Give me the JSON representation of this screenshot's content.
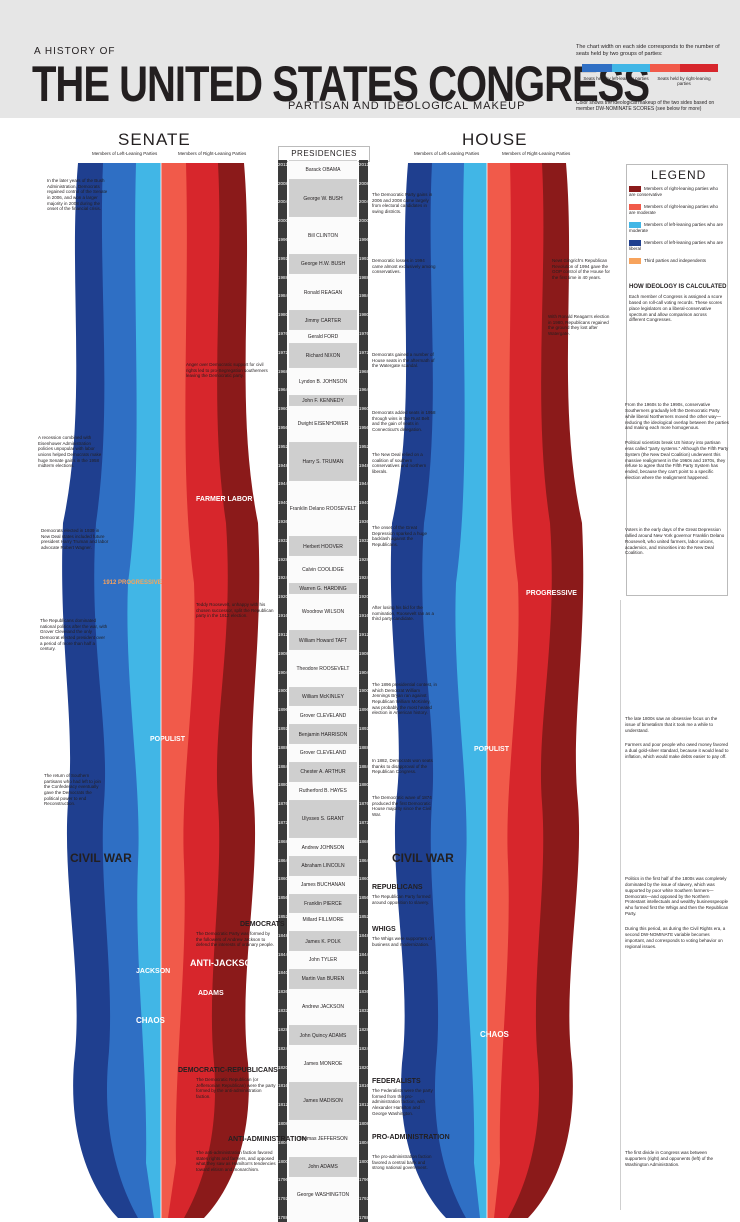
{
  "header": {
    "kicker": "A HISTORY OF",
    "title": "THE UNITED STATES CONGRESS",
    "subtitle": "PARTISAN AND IDEOLOGICAL MAKEUP",
    "key_text": "The chart width on each side corresponds to the number of seats held by two groups of parties:",
    "key_left": "Seats held by left-leaning parties",
    "key_right": "Seats held by right-leaning parties",
    "key_footer": "Color shows the ideological makeup of the two sides based on member DW-NOMINATE SCORES (see below for more)"
  },
  "sections": {
    "senate": "SENATE",
    "house": "HOUSE",
    "presidencies": "PRESIDENCIES",
    "axis_left": "Members of Left-Leaning Parties",
    "axis_right": "Members of Right-Leaning Parties"
  },
  "colors": {
    "dark_blue": "#1f3f8f",
    "mid_blue": "#2f6fc4",
    "light_blue": "#41b6e6",
    "dark_red": "#8b1a1a",
    "red": "#d7262c",
    "light_red": "#f15a4a"
  },
  "presidents": [
    {
      "name": "Barack OBAMA",
      "start": "2009",
      "end": "2013"
    },
    {
      "name": "George W. BUSH",
      "start": "2001",
      "end": "2009"
    },
    {
      "name": "Bill CLINTON",
      "start": "1993",
      "end": "2001"
    },
    {
      "name": "George H.W. BUSH",
      "start": "1989",
      "end": "1993"
    },
    {
      "name": "Ronald REAGAN",
      "start": "1981",
      "end": "1989"
    },
    {
      "name": "Jimmy CARTER",
      "start": "1977",
      "end": "1981"
    },
    {
      "name": "Gerald FORD",
      "start": "1974",
      "end": "1977"
    },
    {
      "name": "Richard NIXON",
      "start": "1969",
      "end": "1974"
    },
    {
      "name": "Lyndon B. JOHNSON",
      "start": "1963",
      "end": "1969"
    },
    {
      "name": "John F. KENNEDY",
      "start": "1961",
      "end": "1963"
    },
    {
      "name": "Dwight EISENHOWER",
      "start": "1953",
      "end": "1961"
    },
    {
      "name": "Harry S. TRUMAN",
      "start": "1945",
      "end": "1953"
    },
    {
      "name": "Franklin Delano ROOSEVELT",
      "start": "1933",
      "end": "1945"
    },
    {
      "name": "Herbert HOOVER",
      "start": "1929",
      "end": "1933"
    },
    {
      "name": "Calvin COOLIDGE",
      "start": "1923",
      "end": "1929"
    },
    {
      "name": "Warren G. HARDING",
      "start": "1921",
      "end": "1923"
    },
    {
      "name": "Woodrow WILSON",
      "start": "1913",
      "end": "1921"
    },
    {
      "name": "William Howard TAFT",
      "start": "1909",
      "end": "1913"
    },
    {
      "name": "Theodore ROOSEVELT",
      "start": "1901",
      "end": "1909"
    },
    {
      "name": "William McKINLEY",
      "start": "1897",
      "end": "1901"
    },
    {
      "name": "Grover CLEVELAND",
      "start": "1893",
      "end": "1897"
    },
    {
      "name": "Benjamin HARRISON",
      "start": "1889",
      "end": "1893"
    },
    {
      "name": "Grover CLEVELAND",
      "start": "1885",
      "end": "1889"
    },
    {
      "name": "Chester A. ARTHUR",
      "start": "1881",
      "end": "1885"
    },
    {
      "name": "Rutherford B. HAYES",
      "start": "1877",
      "end": "1881"
    },
    {
      "name": "Ulysses S. GRANT",
      "start": "1869",
      "end": "1877"
    },
    {
      "name": "Andrew JOHNSON",
      "start": "1865",
      "end": "1869"
    },
    {
      "name": "Abraham LINCOLN",
      "start": "1861",
      "end": "1865"
    },
    {
      "name": "James BUCHANAN",
      "start": "1857",
      "end": "1861"
    },
    {
      "name": "Franklin PIERCE",
      "start": "1853",
      "end": "1857"
    },
    {
      "name": "Millard FILLMORE",
      "start": "1850",
      "end": "1853"
    },
    {
      "name": "James K. POLK",
      "start": "1845",
      "end": "1849"
    },
    {
      "name": "John TYLER",
      "start": "1841",
      "end": "1845"
    },
    {
      "name": "Martin Van BUREN",
      "start": "1837",
      "end": "1841"
    },
    {
      "name": "Andrew JACKSON",
      "start": "1829",
      "end": "1837"
    },
    {
      "name": "John Quincy ADAMS",
      "start": "1825",
      "end": "1829"
    },
    {
      "name": "James MONROE",
      "start": "1817",
      "end": "1825"
    },
    {
      "name": "James MADISON",
      "start": "1809",
      "end": "1817"
    },
    {
      "name": "Thomas JEFFERSON",
      "start": "1801",
      "end": "1809"
    },
    {
      "name": "John ADAMS",
      "start": "1797",
      "end": "1801"
    },
    {
      "name": "George WASHINGTON",
      "start": "1789",
      "end": "1797"
    }
  ],
  "ruler_years": [
    "2012",
    "2008",
    "2004",
    "2000",
    "1996",
    "1992",
    "1988",
    "1984",
    "1980",
    "1976",
    "1972",
    "1968",
    "1964",
    "1960",
    "1956",
    "1952",
    "1948",
    "1944",
    "1940",
    "1936",
    "1932",
    "1928",
    "1924",
    "1920",
    "1916",
    "1912",
    "1908",
    "1904",
    "1900",
    "1896",
    "1892",
    "1888",
    "1884",
    "1880",
    "1876",
    "1872",
    "1868",
    "1864",
    "1860",
    "1856",
    "1852",
    "1848",
    "1844",
    "1840",
    "1836",
    "1832",
    "1828",
    "1824",
    "1820",
    "1816",
    "1812",
    "1808",
    "1804",
    "1800",
    "1796",
    "1792",
    "1788"
  ],
  "eras": {
    "farmer_labor": "FARMER LABOR",
    "progressive_senate": "1912 PROGRESSIVE",
    "populist_senate": "POPULIST",
    "civil_war_senate": "CIVIL WAR",
    "anti_jackson": "ANTI-JACKSON",
    "jackson": "JACKSON",
    "adams": "ADAMS",
    "chaos": "CHAOS",
    "progressive_house": "PROGRESSIVE",
    "populist_house": "POPULIST",
    "civil_war_house": "CIVIL WAR"
  },
  "senate_notes": {
    "n1": "In the later years of the Bush Administration, Democrats regained control of the Senate in 2006, and won a larger majority in 2008 during the onset of the financial crisis.",
    "n2": "Anger over Democratic support for civil rights led to pro-Segregation southerners leaving the Democratic party.",
    "n3": "A recession combined with Eisenhower Administration policies unpopular with labor unions helped Democrats make huge Senate gains in the 1958 midterm elections.",
    "n4": "Democrats elected in 1939 in New Deal states included future president Harry Truman and labor advocate Robert Wagner.",
    "n5": "Teddy Roosevelt, unhappy with his chosen successor, split the Republican party in the 1912 election.",
    "n6": "The Republicans dominated national politics after the war, with Grover Cleveland the only Democrat elected president over a period of more than half a century.",
    "n7": "The return of Southern partisans who had left to join the Confederacy eventually gave the Democrats the political power to end Reconstruction.",
    "n8": "DEMOCRATS",
    "n9": "The Democratic Party was formed by the followers of Andrew Jackson to defend the interests of ordinary people.",
    "n10": "DEMOCRATIC-REPUBLICANS",
    "n11": "The Democratic Republican (or Jeffersonian Republican) were the party formed by the anti-administration faction.",
    "n12": "ANTI-ADMINISTRATION",
    "n13": "The anti-administration faction favored states rights and farmers, and opposed what they saw as Hamilton's tendencies toward elitism and monarchism."
  },
  "house_notes": {
    "n1": "The Democratic Party gains in 2006 and 2008 came largely from electoral candidates in swing districts.",
    "n2": "Democratic losses in 1994 came almost exclusively among conservatives.",
    "n3": "Newt Gingrich's Republican Revolution of 1994 gave the GOP control of the House for the first time in 40 years.",
    "n4": "With Ronald Reagan's election in 1980, Republicans regained the ground they lost after Watergate.",
    "n5": "Democrats gained a number of House seats in the aftermath of the Watergate scandal.",
    "n6": "Democrats added seats in 1958 through wins in the Rust Belt and the gain of seats in Connecticut's delegation.",
    "n7": "The New Deal relied on a coalition of southern conservatives and northern liberals.",
    "n8": "The onset of the Great Depression sparked a huge backlash against the Republicans.",
    "n9": "After losing his bid for the nomination, Roosevelt ran as a third party candidate.",
    "n10": "The 1896 presidential contest, in which Democrat William Jennings Bryan ran against Republican William McKinley, was probably the most heated election in American history.",
    "n11": "In 1882, Democrats won seats thanks to disapproval of the Republican Congress.",
    "n12": "The Democratic wave of 1874 produced the first Democratic House majority since the Civil War.",
    "n13": "REPUBLICANS",
    "n14": "The Republican Party formed around opposition to slavery.",
    "n15": "WHIGS",
    "n16": "The Whigs were supporters of business and modernization.",
    "n17": "FEDERALISTS",
    "n18": "The Federalists were the party formed from the pro-administration faction, with Alexander Hamilton and George Washington.",
    "n19": "PRO-ADMINISTRATION",
    "n20": "The pro-administration faction favored a central bank and strong national government."
  },
  "legend": {
    "title": "LEGEND",
    "items": [
      "Members of right-leaning parties who are conservative",
      "Members of right-leaning parties who are moderate",
      "Members of left-leaning parties who are moderate",
      "Members of left-leaning parties who are liberal",
      "Third parties and independents"
    ],
    "how_title": "HOW IDEOLOGY IS CALCULATED",
    "how_text": "Each member of Congress is assigned a score based on roll-call voting records. These scores place legislators on a liberal-conservative spectrum and allow comparison across different Congresses."
  },
  "right_column": {
    "p1": "From the 1960s to the 1990s, conservative Southerners gradually left the Democratic Party while liberal Northerners moved the other way—reducing the ideological overlap between the parties and making each more homogenous.",
    "p2": "Political scientists break US history into partisan eras called \"party systems.\" Although the Fifth Party System (the New Deal Coalition) underwent this massive realignment in the 1960s and 1970s, they refuse to agree that the Fifth Party System has ended, because they can't point to a specific election where the realignment happened.",
    "p3": "Voters in the early days of the Great Depression rallied around New York governor Franklin Delano Roosevelt, who united farmers, labor unions, academics, and minorities into the New Deal Coalition.",
    "p4": "The late 1800s saw an obsessive focus on the issue of bimetalism that it took me a while to understand.",
    "p5": "Farmers and poor people who owed money favored a dual gold-silver standard, because it would lead to inflation, which would make debts easier to pay off.",
    "p6": "Politics in the first half of the 1800s was completely dominated by the issue of slavery, which was supported by poor white Southern farmers—Democrats—and opposed by the Northern Protestant intellectuals and wealthy businesspeople who formed first the Whigs and then the Republican Party.",
    "p7": "During this period, as during the Civil Rights era, a second DW-NOMINATE variable becomes important, and corresponds to voting behavior on regional issues.",
    "p8": "The first divide in Congress was between supporters (right) and opponents (left) of the Washington Administration."
  }
}
